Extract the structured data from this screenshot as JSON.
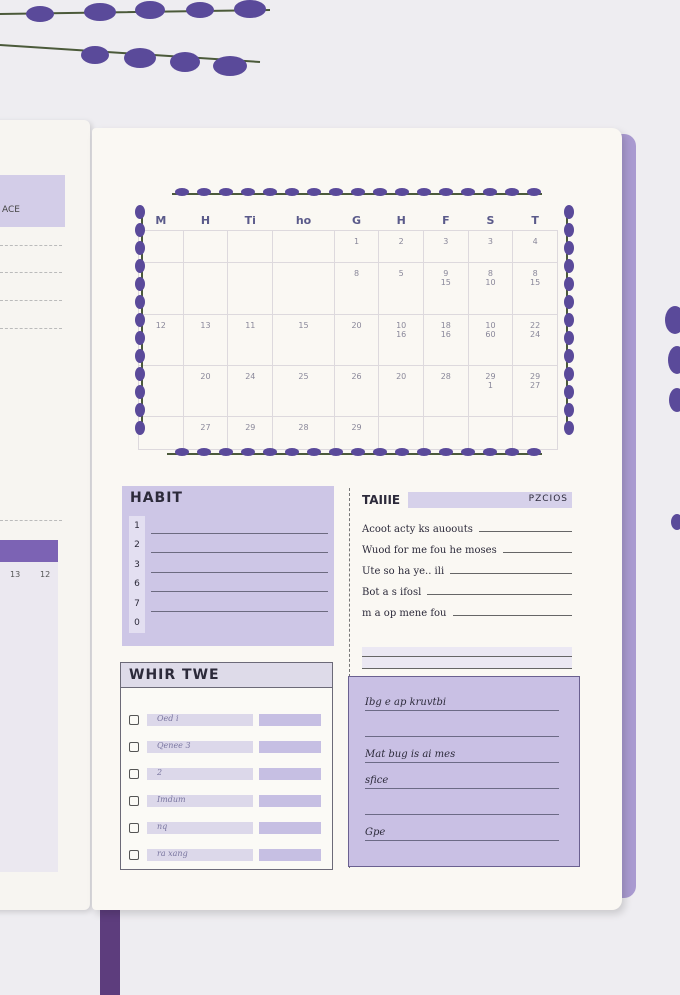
{
  "left_page": {
    "header": "ACE",
    "col_numbers": [
      "13",
      "12"
    ]
  },
  "calendar": {
    "day_headers": [
      "M",
      "H",
      "Ti",
      "ho",
      "G",
      "H",
      "F",
      "S",
      "T"
    ],
    "rows": [
      [
        "",
        "",
        "",
        "",
        "1",
        "2",
        "3",
        "3",
        "4"
      ],
      [
        "",
        "",
        "",
        "",
        "8",
        "5",
        "9\n15",
        "8\n10",
        "8\n15"
      ],
      [
        "12",
        "13",
        "11",
        "15",
        "20",
        "10\n16",
        "18\n16",
        "10\n60",
        "22\n24"
      ],
      [
        "",
        "20",
        "24",
        "25",
        "26",
        "20",
        "28",
        "29\n1",
        "29\n27"
      ],
      [
        "",
        "27",
        "29",
        "28",
        "29",
        "",
        "",
        "",
        ""
      ]
    ]
  },
  "habit": {
    "title": "HABIT",
    "numbers": [
      "1",
      "2",
      "3",
      "6",
      "7",
      "0"
    ]
  },
  "what_to": {
    "title": "WHIR TWE",
    "items": [
      "Oed i",
      "Qenee 3",
      "2",
      "Imdum",
      "nq",
      "ra xang"
    ]
  },
  "table": {
    "title": "TAIIIE",
    "label": "PZCIOS",
    "rows": [
      "Acoot acty ks auoouts",
      "Wuod for me fou he moses",
      "Ute so ha ye.. ili",
      "Bot a s ifosl",
      "m a op mene fou"
    ]
  },
  "notes": {
    "lines": [
      "Ibg e ap kruvtbi",
      "",
      "Mat bug is ai mes",
      "sfice",
      "",
      "Gpe"
    ]
  },
  "colors": {
    "lavender": "#5a4a9a",
    "panel": "#cdc6e6",
    "cover": "#a99ad0",
    "ribbon": "#5d3d7d"
  }
}
